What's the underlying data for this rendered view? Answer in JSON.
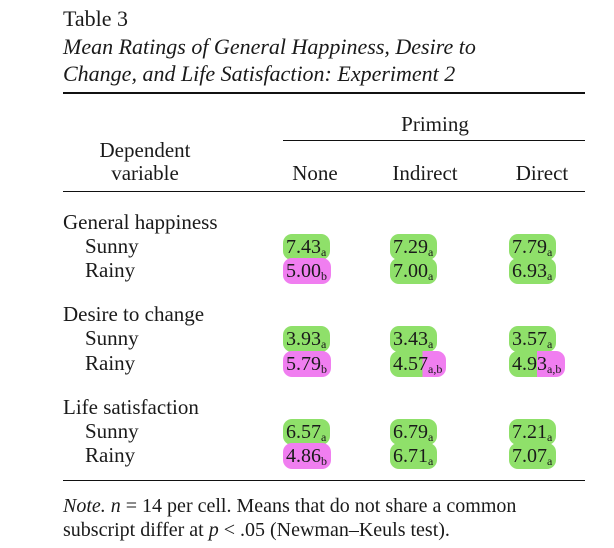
{
  "table": {
    "number": "Table 3",
    "title_line1": "Mean Ratings of General Happiness, Desire to",
    "title_line2": "Change, and Life Satisfaction: Experiment 2",
    "col_group": "Priming",
    "dv_header_line1": "Dependent",
    "dv_header_line2": "variable",
    "columns": [
      "None",
      "Indirect",
      "Direct"
    ],
    "sections": [
      {
        "name": "General happiness",
        "rows": [
          {
            "label": "Sunny",
            "cells": [
              {
                "value": "7.43",
                "sub": "a",
                "hl": "green"
              },
              {
                "value": "7.29",
                "sub": "a",
                "hl": "green"
              },
              {
                "value": "7.79",
                "sub": "a",
                "hl": "green"
              }
            ]
          },
          {
            "label": "Rainy",
            "cells": [
              {
                "value": "5.00",
                "sub": "b",
                "hl": "pink"
              },
              {
                "value": "7.00",
                "sub": "a",
                "hl": "green"
              },
              {
                "value": "6.93",
                "sub": "a",
                "hl": "green"
              }
            ]
          }
        ]
      },
      {
        "name": "Desire to change",
        "rows": [
          {
            "label": "Sunny",
            "cells": [
              {
                "value": "3.93",
                "sub": "a",
                "hl": "green"
              },
              {
                "value": "3.43",
                "sub": "a",
                "hl": "green"
              },
              {
                "value": "3.57",
                "sub": "a",
                "hl": "green"
              }
            ]
          },
          {
            "label": "Rainy",
            "cells": [
              {
                "value": "5.79",
                "sub": "b",
                "hl": "pink"
              },
              {
                "value": "4.57",
                "sub": "a,b",
                "hl": "mixed"
              },
              {
                "value": "4.93",
                "sub": "a,b",
                "hl": "mixed"
              }
            ]
          }
        ]
      },
      {
        "name": "Life satisfaction",
        "rows": [
          {
            "label": "Sunny",
            "cells": [
              {
                "value": "6.57",
                "sub": "a",
                "hl": "green"
              },
              {
                "value": "6.79",
                "sub": "a",
                "hl": "green"
              },
              {
                "value": "7.21",
                "sub": "a",
                "hl": "green"
              }
            ]
          },
          {
            "label": "Rainy",
            "cells": [
              {
                "value": "4.86",
                "sub": "b",
                "hl": "pink"
              },
              {
                "value": "6.71",
                "sub": "a",
                "hl": "green"
              },
              {
                "value": "7.07",
                "sub": "a",
                "hl": "green"
              }
            ]
          }
        ]
      }
    ],
    "note_label": "Note.",
    "note_n": "n",
    "note_line1_rest": " = 14 per cell. Means that do not share a common",
    "note_line2_a": "subscript differ at ",
    "note_p": "p",
    "note_line2_b": " < .05 (Newman–Keuls test)."
  },
  "colors": {
    "green": "#8fe06a",
    "pink": "#f07ef0"
  }
}
